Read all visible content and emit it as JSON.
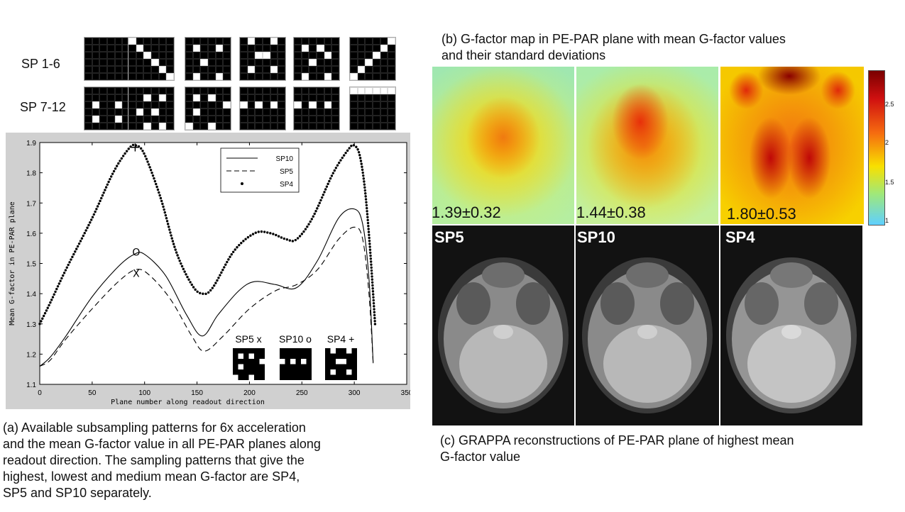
{
  "panel_a": {
    "row1_label": "SP 1-6",
    "row2_label": "SP 7-12",
    "caption": [
      "(a) Available subsampling patterns for 6x acceleration",
      "and the mean G-factor value in all PE-PAR planes along",
      "readout direction. The sampling patterns that give the",
      "highest, lowest and medium mean G-factor are SP4,",
      "SP5 and SP10 separately."
    ],
    "inset_labels": [
      "SP5 x",
      "SP10 o",
      "SP4 +"
    ]
  },
  "panel_b": {
    "caption": [
      "(b) G-factor map in PE-PAR plane with mean G-factor values",
      "and their standard deviations"
    ],
    "values": [
      "1.39±0.32",
      "1.44±0.38",
      "1.80±0.53"
    ],
    "colorbar_ticks": [
      "2.5",
      "2",
      "1.5",
      "1"
    ]
  },
  "panel_c": {
    "labels": [
      "SP5",
      "SP10",
      "SP4"
    ],
    "caption": [
      "(c) GRAPPA reconstructions of PE-PAR plane of highest mean",
      "G-factor value"
    ]
  },
  "chart_data": {
    "type": "line",
    "xlabel": "Plane number along readout direction",
    "ylabel": "Mean G-factor in PE-PAR plane",
    "xlim": [
      0,
      350
    ],
    "ylim": [
      1.1,
      1.9
    ],
    "xticks": [
      0,
      50,
      100,
      150,
      200,
      250,
      300,
      350
    ],
    "yticks": [
      1.1,
      1.2,
      1.3,
      1.4,
      1.5,
      1.6,
      1.7,
      1.8,
      1.9
    ],
    "legend": {
      "position": "top-right",
      "entries": [
        "SP10",
        "SP5",
        "SP4"
      ]
    },
    "series": [
      {
        "name": "SP10",
        "style": "solid",
        "x": [
          0,
          10,
          25,
          50,
          75,
          90,
          100,
          120,
          140,
          155,
          170,
          190,
          205,
          225,
          245,
          265,
          285,
          300,
          308,
          314,
          318
        ],
        "y": [
          1.16,
          1.19,
          1.26,
          1.39,
          1.49,
          1.53,
          1.53,
          1.46,
          1.33,
          1.26,
          1.33,
          1.41,
          1.44,
          1.43,
          1.42,
          1.51,
          1.65,
          1.68,
          1.63,
          1.45,
          1.17
        ]
      },
      {
        "name": "SP5",
        "style": "dashed",
        "x": [
          0,
          10,
          25,
          50,
          75,
          92,
          105,
          125,
          145,
          157,
          175,
          200,
          225,
          245,
          265,
          285,
          300,
          308,
          314,
          318
        ],
        "y": [
          1.16,
          1.18,
          1.25,
          1.35,
          1.44,
          1.48,
          1.46,
          1.38,
          1.26,
          1.21,
          1.26,
          1.35,
          1.41,
          1.43,
          1.48,
          1.58,
          1.62,
          1.58,
          1.4,
          1.17
        ]
      },
      {
        "name": "SP4",
        "style": "dots",
        "x": [
          0,
          10,
          25,
          50,
          70,
          85,
          92,
          100,
          115,
          130,
          145,
          155,
          165,
          185,
          205,
          220,
          235,
          245,
          260,
          280,
          295,
          300,
          305,
          310,
          315,
          320
        ],
        "y": [
          1.3,
          1.37,
          1.48,
          1.65,
          1.8,
          1.88,
          1.89,
          1.86,
          1.72,
          1.54,
          1.43,
          1.4,
          1.42,
          1.54,
          1.6,
          1.6,
          1.58,
          1.58,
          1.65,
          1.8,
          1.88,
          1.89,
          1.86,
          1.75,
          1.55,
          1.29
        ]
      }
    ],
    "annotations": [
      {
        "text": "+",
        "x": 91,
        "y": 1.885
      },
      {
        "text": "O",
        "x": 92,
        "y": 1.54
      },
      {
        "text": "X",
        "x": 92,
        "y": 1.47
      }
    ]
  }
}
